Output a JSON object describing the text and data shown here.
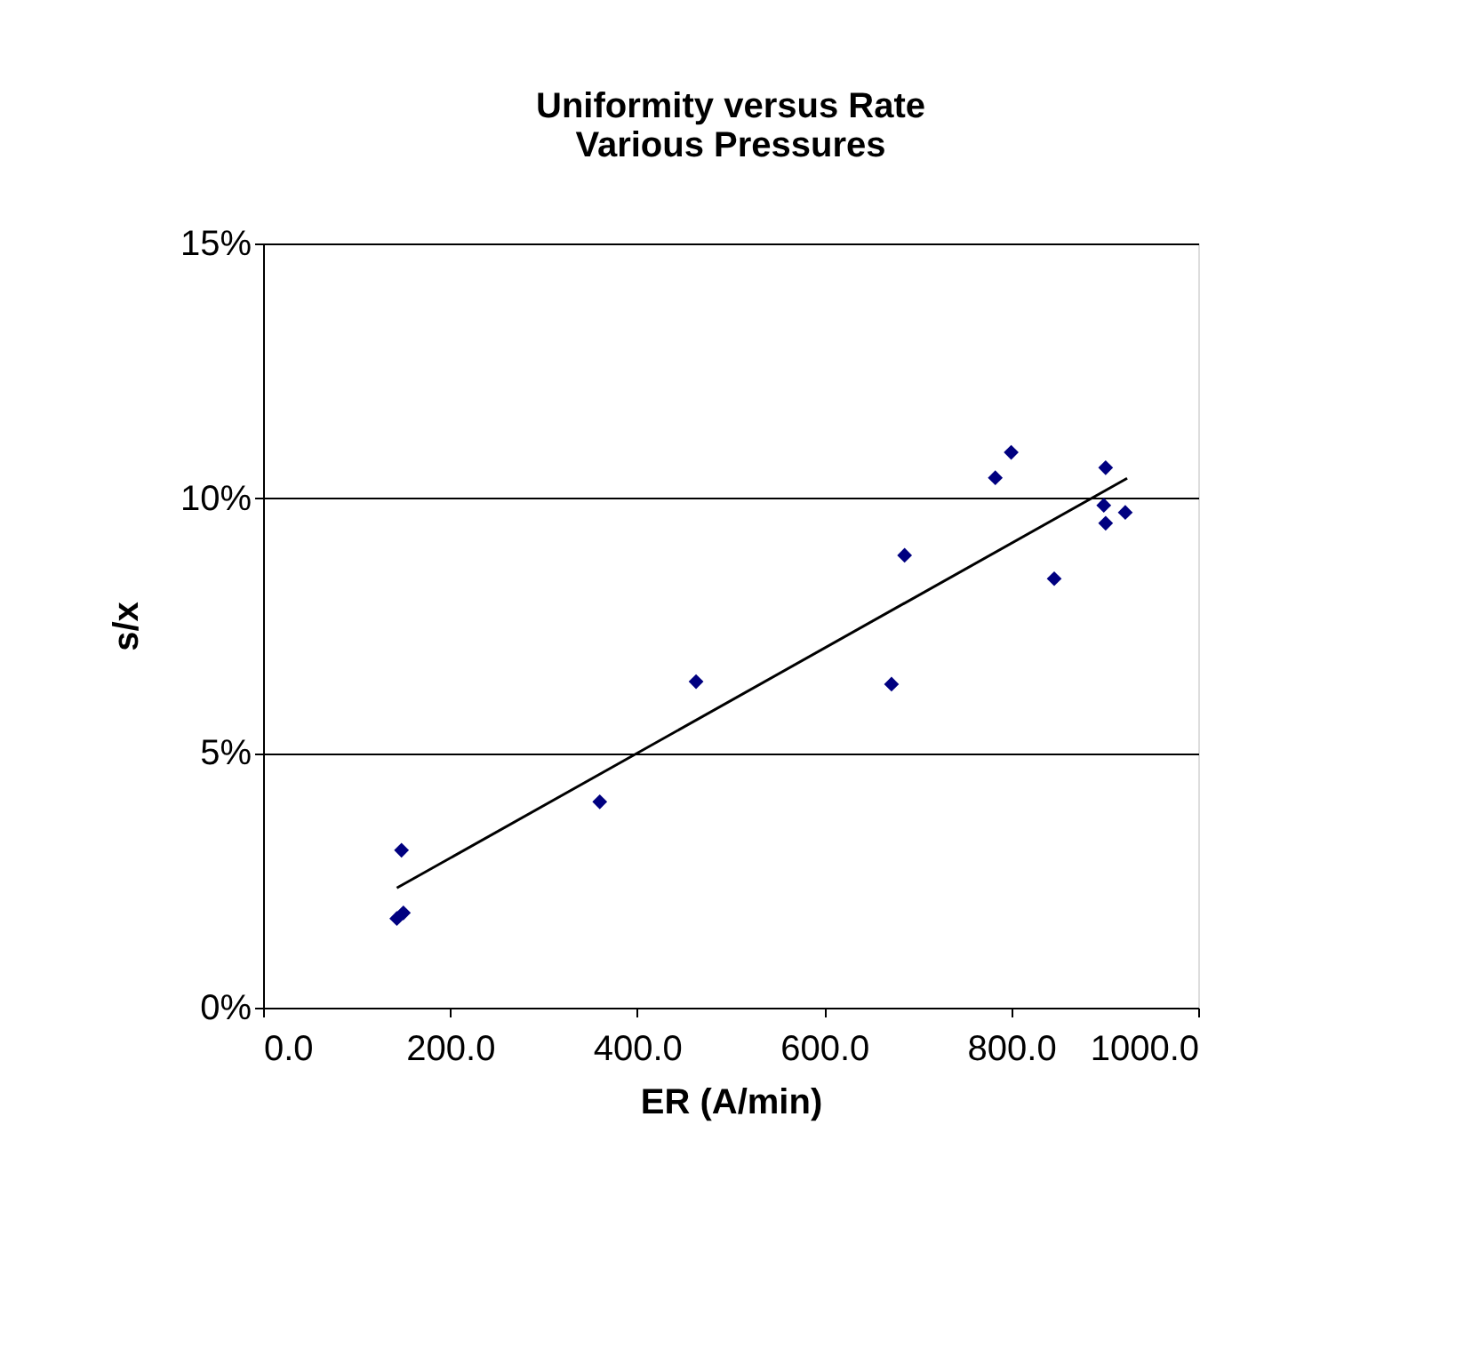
{
  "chart_data": {
    "type": "scatter",
    "title": [
      "Uniformity versus Rate",
      "Various Pressures"
    ],
    "xlabel": "ER (A/min)",
    "ylabel": "s/x",
    "series": [
      {
        "color": "#000080",
        "marker": "diamond",
        "x": [
          143,
          150,
          148,
          360,
          463,
          672,
          686,
          783,
          800,
          846,
          899,
          901,
          901,
          922
        ],
        "values": [
          1.75,
          1.86,
          3.09,
          4.04,
          6.4,
          6.35,
          8.88,
          10.4,
          10.9,
          8.42,
          9.86,
          9.51,
          10.6,
          9.72
        ]
      },
      {
        "type": "line",
        "color": "#000000",
        "x": [
          143,
          924
        ],
        "values": [
          2.35,
          10.39
        ]
      }
    ],
    "xlim": [
      0,
      1000
    ],
    "ylim": [
      0,
      15
    ],
    "xticks": [
      {
        "value": 0,
        "label": "0.0"
      },
      {
        "value": 200,
        "label": "200.0"
      },
      {
        "value": 400,
        "label": "400.0"
      },
      {
        "value": 600,
        "label": "600.0"
      },
      {
        "value": 800,
        "label": "800.0"
      },
      {
        "value": 1000,
        "label": "1000.0"
      }
    ],
    "yticks": [
      {
        "value": 0,
        "label": "0%"
      },
      {
        "value": 5,
        "label": "5%"
      },
      {
        "value": 10,
        "label": "10%"
      },
      {
        "value": 15,
        "label": "15%"
      }
    ],
    "grid": "y"
  }
}
